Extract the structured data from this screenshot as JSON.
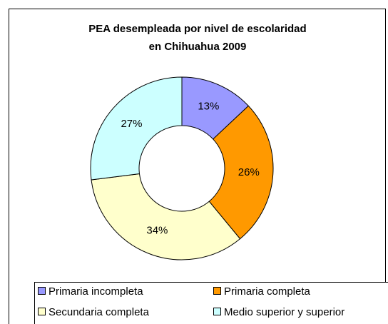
{
  "chart_data": {
    "type": "donut",
    "title": [
      "PEA desempleada por nivel de escolaridad",
      "en Chihuahua 2009"
    ],
    "categories": [
      "Primaria incompleta",
      "Primaria completa",
      "Secundaria completa",
      "Medio superior y superior"
    ],
    "values": [
      13,
      26,
      34,
      27
    ],
    "value_labels": [
      "13%",
      "26%",
      "34%",
      "27%"
    ],
    "colors": [
      "#9999ff",
      "#ff9900",
      "#ffffcc",
      "#ccffff"
    ],
    "legend": "bottom"
  }
}
